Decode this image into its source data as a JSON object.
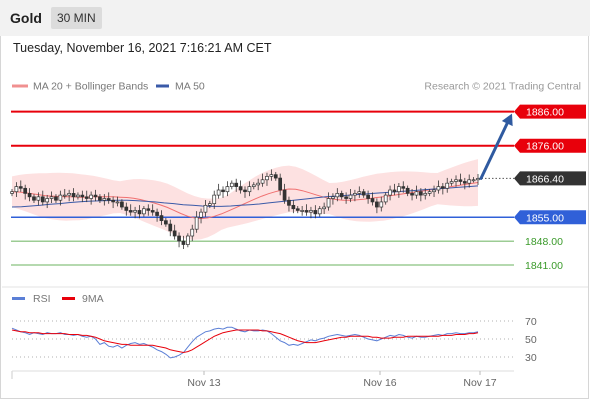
{
  "header": {
    "title": "Gold",
    "timeframe": "30 MIN"
  },
  "timestamp": "Tuesday, November 16, 2021 7:16:21 AM CET",
  "legend": {
    "ma20_label": "MA 20 + Bollinger Bands",
    "ma50_label": "MA 50",
    "copyright": "Research © 2021 Trading Central"
  },
  "indicator_legend": {
    "rsi_label": "RSI",
    "ma_label": "9MA"
  },
  "colors": {
    "bull_candle": "#ffffff",
    "bear_candle": "#333333",
    "ma20": "#f07070",
    "bands_fill": "#fde1e1",
    "ma50": "#3a5aa8",
    "resistance": "#e8000b",
    "support": "#3060d8",
    "minor_support": "#3a9a2a",
    "last_price": "#333333",
    "rsi": "#5b7fd6",
    "rsi_ma": "#e8000b",
    "arrow": "#2f5aa0"
  },
  "chart_data": [
    {
      "type": "candlestick",
      "title": "Gold 30 MIN",
      "x_tick_labels": [
        "Nov 13",
        "Nov 16",
        "Nov 17"
      ],
      "ylim": [
        1836,
        1890
      ],
      "last_price": 1866.4,
      "levels": [
        {
          "value": 1886.0,
          "label": "1886.00",
          "kind": "resistance"
        },
        {
          "value": 1876.0,
          "label": "1876.00",
          "kind": "resistance"
        },
        {
          "value": 1866.4,
          "label": "1866.40",
          "kind": "last"
        },
        {
          "value": 1855.0,
          "label": "1855.00",
          "kind": "support"
        },
        {
          "value": 1848.0,
          "label": "1848.00",
          "kind": "minor_support"
        },
        {
          "value": 1841.0,
          "label": "1841.00",
          "kind": "minor_support"
        }
      ],
      "close": [
        1862.5,
        1864.0,
        1863.5,
        1862.0,
        1861.0,
        1860.0,
        1861.0,
        1859.5,
        1860.5,
        1861.0,
        1860.0,
        1861.5,
        1861.5,
        1862.0,
        1861.0,
        1861.5,
        1861.0,
        1860.5,
        1861.5,
        1861.0,
        1860.0,
        1860.5,
        1860.0,
        1859.5,
        1859.5,
        1858.0,
        1857.0,
        1856.5,
        1857.0,
        1856.0,
        1857.5,
        1857.0,
        1856.5,
        1855.5,
        1854.0,
        1853.0,
        1851.0,
        1849.5,
        1848.0,
        1847.0,
        1849.5,
        1851.5,
        1855.0,
        1856.5,
        1858.5,
        1859.0,
        1861.5,
        1863.0,
        1862.5,
        1864.0,
        1865.0,
        1864.0,
        1863.0,
        1862.5,
        1864.0,
        1864.5,
        1865.0,
        1866.0,
        1867.0,
        1867.5,
        1866.5,
        1863.0,
        1860.0,
        1858.5,
        1857.5,
        1857.0,
        1857.0,
        1856.5,
        1857.0,
        1856.0,
        1857.5,
        1858.0,
        1860.5,
        1861.0,
        1862.0,
        1861.0,
        1860.5,
        1861.5,
        1862.0,
        1862.5,
        1861.5,
        1860.5,
        1859.5,
        1858.0,
        1859.5,
        1861.5,
        1863.0,
        1862.5,
        1864.0,
        1863.5,
        1862.0,
        1861.5,
        1862.5,
        1861.5,
        1862.0,
        1862.5,
        1863.0,
        1864.0,
        1863.5,
        1865.0,
        1865.5,
        1866.0,
        1865.5,
        1865.0,
        1866.0,
        1866.0,
        1866.4
      ],
      "ma20": [
        1862.5,
        1862.4,
        1862.2,
        1861.9,
        1861.6,
        1861.3,
        1861.2,
        1861.1,
        1861.0,
        1861.0,
        1860.9,
        1860.9,
        1861.0,
        1861.0,
        1861.0,
        1861.0,
        1860.9,
        1860.8,
        1860.6,
        1860.2,
        1859.7,
        1859.2,
        1858.6,
        1857.9,
        1857.0,
        1856.1,
        1855.3,
        1854.8,
        1854.6,
        1854.8,
        1855.3,
        1856.0,
        1856.8,
        1857.7,
        1858.6,
        1859.5,
        1860.4,
        1861.2,
        1861.9,
        1862.5,
        1863.0,
        1863.3,
        1863.2,
        1862.8,
        1862.2,
        1861.6,
        1861.0,
        1860.5,
        1860.2,
        1860.0,
        1860.0,
        1860.1,
        1860.3,
        1860.5,
        1860.8,
        1861.0,
        1861.3,
        1861.6,
        1861.9,
        1862.2,
        1862.5,
        1862.8,
        1863.1,
        1863.4,
        1863.7,
        1864.0,
        1864.3,
        1864.6,
        1864.9,
        1865.2
      ],
      "ma50": [
        1858.0,
        1858.1,
        1858.3,
        1858.5,
        1858.8,
        1859.0,
        1859.3,
        1859.5,
        1859.7,
        1859.8,
        1859.9,
        1860.0,
        1860.0,
        1859.9,
        1859.7,
        1859.5,
        1859.2,
        1859.0,
        1858.7,
        1858.5,
        1858.3,
        1858.2,
        1858.2,
        1858.3,
        1858.5,
        1858.7,
        1858.9,
        1859.2,
        1859.5,
        1859.8,
        1860.1,
        1860.4,
        1860.7,
        1861.0,
        1861.2,
        1861.4,
        1861.6,
        1861.8,
        1862.0,
        1862.2,
        1862.4,
        1862.6,
        1862.8,
        1863.0,
        1863.2,
        1863.4,
        1863.6,
        1863.8,
        1864.0,
        1864.2
      ],
      "forecast_arrow": {
        "from": 1866.4,
        "to": 1886.0
      }
    },
    {
      "type": "line",
      "title": "RSI",
      "ylim": [
        20,
        80
      ],
      "y_tick_labels": [
        "70",
        "50",
        "30"
      ],
      "y_ticks": [
        70,
        50,
        30
      ],
      "series": [
        {
          "name": "RSI",
          "values": [
            62,
            60,
            58,
            57,
            55,
            57,
            56,
            55,
            57,
            56,
            56,
            57,
            55,
            55,
            54,
            55,
            53,
            52,
            53,
            50,
            44,
            46,
            42,
            41,
            43,
            40,
            43,
            45,
            46,
            44,
            45,
            43,
            41,
            38,
            36,
            33,
            29,
            30,
            32,
            35,
            41,
            47,
            52,
            55,
            58,
            59,
            61,
            62,
            61,
            63,
            63,
            61,
            59,
            58,
            60,
            59,
            59,
            60,
            59,
            56,
            52,
            48,
            46,
            43,
            44,
            43,
            45,
            47,
            49,
            48,
            50,
            51,
            53,
            54,
            55,
            54,
            53,
            54,
            55,
            54,
            52,
            50,
            49,
            48,
            50,
            52,
            54,
            53,
            55,
            54,
            52,
            51,
            53,
            52,
            52,
            53,
            54,
            55,
            54,
            56,
            56,
            57,
            56,
            56,
            57,
            57,
            58
          ]
        },
        {
          "name": "9MA",
          "values": [
            60,
            59,
            58,
            58,
            57,
            57,
            57,
            56,
            56,
            56,
            56,
            56,
            56,
            55,
            55,
            55,
            54,
            54,
            53,
            52,
            50,
            48,
            47,
            46,
            45,
            44,
            44,
            43,
            43,
            43,
            43,
            43,
            43,
            42,
            41,
            40,
            38,
            37,
            36,
            35,
            36,
            38,
            41,
            44,
            47,
            50,
            53,
            55,
            57,
            58,
            59,
            60,
            60,
            60,
            60,
            60,
            60,
            59,
            59,
            58,
            57,
            56,
            54,
            52,
            50,
            48,
            47,
            46,
            46,
            46,
            47,
            48,
            49,
            50,
            51,
            52,
            52,
            53,
            53,
            53,
            53,
            53,
            52,
            52,
            51,
            51,
            51,
            52,
            52,
            52,
            53,
            53,
            53,
            53,
            53,
            53,
            53,
            53,
            54,
            54,
            54,
            55,
            55,
            55,
            56,
            56,
            57
          ]
        }
      ]
    }
  ]
}
